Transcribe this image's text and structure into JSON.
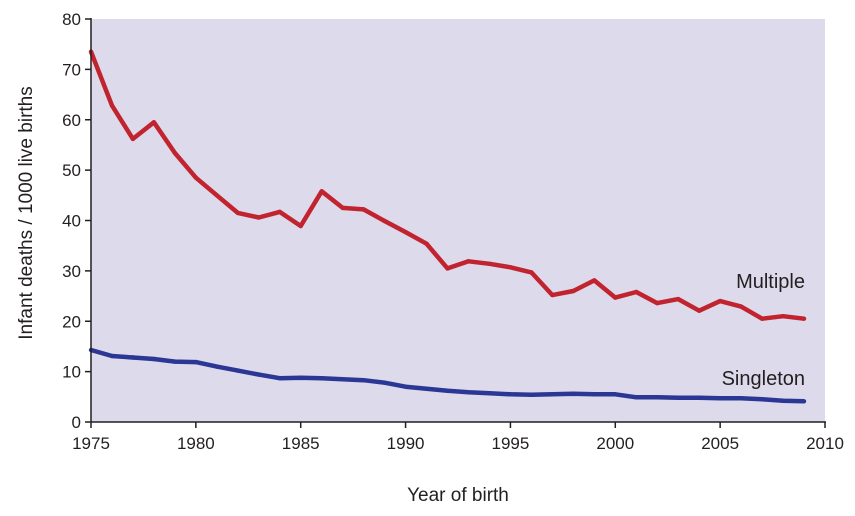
{
  "chart_data": {
    "type": "line",
    "title": "",
    "xlabel": "Year of birth",
    "ylabel": "Infant deaths / 1000 live births",
    "xlim": [
      1975,
      2010
    ],
    "ylim": [
      0,
      80
    ],
    "x_ticks": [
      "1975",
      "1980",
      "1985",
      "1990",
      "1995",
      "2000",
      "2005",
      "2010"
    ],
    "y_ticks": [
      "0",
      "10",
      "20",
      "30",
      "40",
      "50",
      "60",
      "70",
      "80"
    ],
    "grid": false,
    "plot_background": "#dcdaeb",
    "series": [
      {
        "name": "Multiple",
        "color": "#c1232f",
        "x": [
          1975,
          1976,
          1977,
          1978,
          1979,
          1980,
          1981,
          1982,
          1983,
          1984,
          1985,
          1986,
          1987,
          1988,
          1989,
          1990,
          1991,
          1992,
          1993,
          1994,
          1995,
          1996,
          1997,
          1998,
          1999,
          2000,
          2001,
          2002,
          2003,
          2004,
          2005,
          2006,
          2007,
          2008,
          2009
        ],
        "values": [
          73.5,
          62.8,
          56.2,
          59.5,
          53.4,
          48.5,
          45.0,
          41.5,
          40.6,
          41.7,
          38.9,
          45.8,
          42.5,
          42.2,
          39.9,
          37.7,
          35.4,
          30.5,
          31.9,
          31.4,
          30.7,
          29.7,
          25.2,
          26.0,
          28.1,
          24.7,
          25.8,
          23.6,
          24.4,
          22.1,
          24.0,
          22.9,
          20.5,
          21.0,
          20.5
        ]
      },
      {
        "name": "Singleton",
        "color": "#2b3794",
        "x": [
          1975,
          1976,
          1977,
          1978,
          1979,
          1980,
          1981,
          1982,
          1983,
          1984,
          1985,
          1986,
          1987,
          1988,
          1989,
          1990,
          1991,
          1992,
          1993,
          1994,
          1995,
          1996,
          1997,
          1998,
          1999,
          2000,
          2001,
          2002,
          2003,
          2004,
          2005,
          2006,
          2007,
          2008,
          2009
        ],
        "values": [
          14.3,
          13.1,
          12.8,
          12.5,
          12.0,
          11.9,
          11.0,
          10.2,
          9.4,
          8.7,
          8.8,
          8.7,
          8.5,
          8.3,
          7.8,
          7.0,
          6.6,
          6.2,
          5.9,
          5.7,
          5.5,
          5.4,
          5.5,
          5.6,
          5.5,
          5.5,
          4.9,
          4.9,
          4.8,
          4.8,
          4.7,
          4.7,
          4.5,
          4.2,
          4.1
        ]
      }
    ]
  }
}
